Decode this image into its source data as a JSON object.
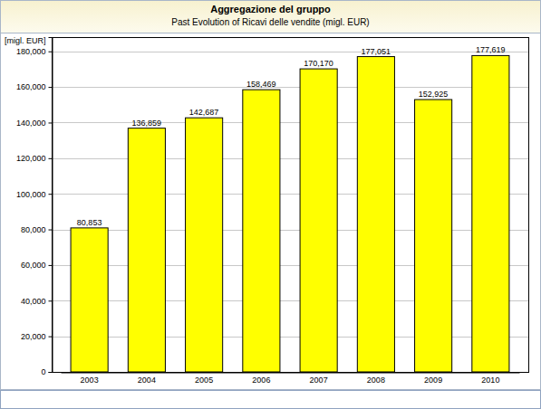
{
  "chart_data": {
    "type": "bar",
    "title": "Aggregazione del gruppo",
    "subtitle": "Past Evolution of Ricavi delle vendite (migl. EUR)",
    "y_label": "[migl. EUR]",
    "categories": [
      "2003",
      "2004",
      "2005",
      "2006",
      "2007",
      "2008",
      "2009",
      "2010"
    ],
    "values": [
      80853,
      136859,
      142687,
      158469,
      170170,
      177051,
      152925,
      177619
    ],
    "value_labels": [
      "80,853",
      "136,859",
      "142,687",
      "158,469",
      "170,170",
      "177,051",
      "152,925",
      "177,619"
    ],
    "color": "#ffff00",
    "ylim": [
      0,
      188000
    ],
    "yticks": [
      0,
      {
        "value": 20000,
        "label": "20,000"
      },
      {
        "value": 40000,
        "label": "40,000"
      },
      {
        "value": 60000,
        "label": "60,000"
      },
      {
        "value": 80000,
        "label": "80,000"
      },
      {
        "value": 100000,
        "label": "100,000"
      },
      {
        "value": 120000,
        "label": "120,000"
      },
      {
        "value": 140000,
        "label": "140,000"
      },
      {
        "value": 160000,
        "label": "160,000"
      },
      {
        "value": 180000,
        "label": "180,000"
      }
    ],
    "grid": true,
    "data_labels": true
  }
}
